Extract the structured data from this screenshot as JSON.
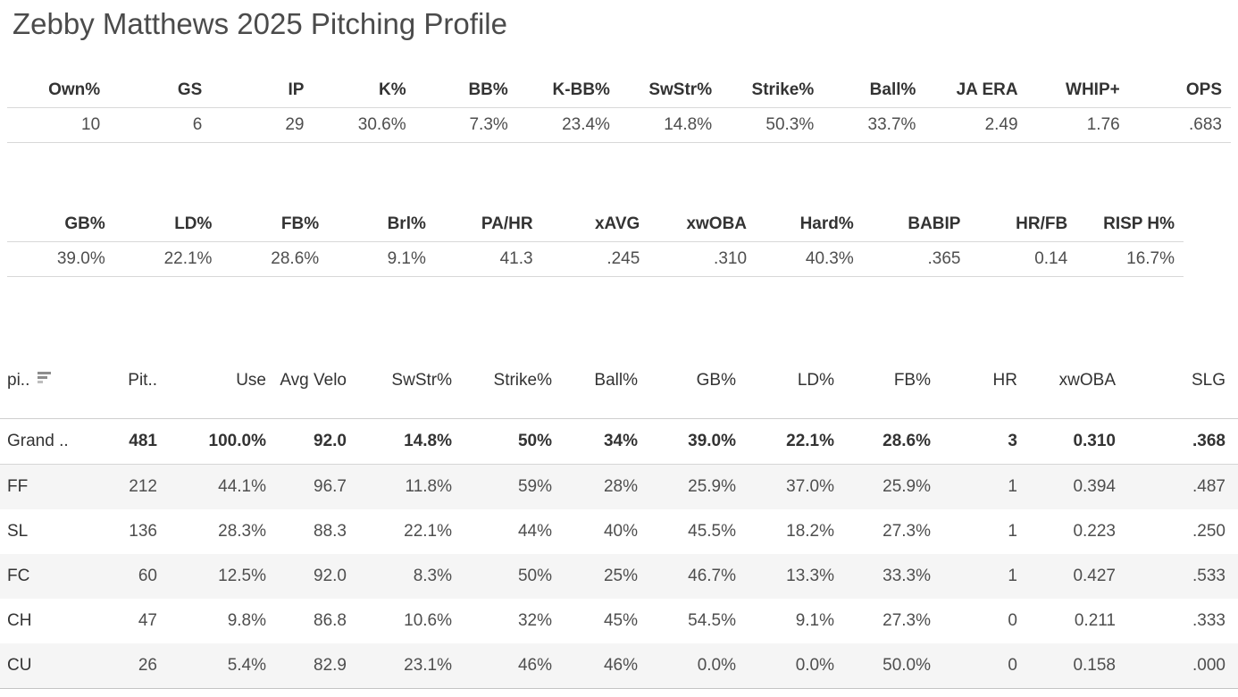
{
  "title": "Zebby Matthews 2025 Pitching Profile",
  "summary_table_1": {
    "columns": [
      "Own%",
      "GS",
      "IP",
      "K%",
      "BB%",
      "K-BB%",
      "SwStr%",
      "Strike%",
      "Ball%",
      "JA ERA",
      "WHIP+",
      "OPS"
    ],
    "values": [
      "10",
      "6",
      "29",
      "30.6%",
      "7.3%",
      "23.4%",
      "14.8%",
      "50.3%",
      "33.7%",
      "2.49",
      "1.76",
      ".683"
    ]
  },
  "summary_table_2": {
    "columns": [
      "GB%",
      "LD%",
      "FB%",
      "Brl%",
      "PA/HR",
      "xAVG",
      "xwOBA",
      "Hard%",
      "BABIP",
      "HR/FB",
      "RISP H%"
    ],
    "values": [
      "39.0%",
      "22.1%",
      "28.6%",
      "9.1%",
      "41.3",
      ".245",
      ".310",
      "40.3%",
      ".365",
      "0.14",
      "16.7%"
    ]
  },
  "pitch_table": {
    "row_header_label": "pi..",
    "sort_icon": "sort-descending-icon",
    "columns": [
      "Pit..",
      "Use",
      "Avg Velo",
      "SwStr%",
      "Strike%",
      "Ball%",
      "GB%",
      "LD%",
      "FB%",
      "HR",
      "xwOBA",
      "SLG"
    ],
    "rows": [
      {
        "label": "Grand ..",
        "grand": true,
        "values": [
          "481",
          "100.0%",
          "92.0",
          "14.8%",
          "50%",
          "34%",
          "39.0%",
          "22.1%",
          "28.6%",
          "3",
          "0.310",
          ".368"
        ]
      },
      {
        "label": "FF",
        "grand": false,
        "values": [
          "212",
          "44.1%",
          "96.7",
          "11.8%",
          "59%",
          "28%",
          "25.9%",
          "37.0%",
          "25.9%",
          "1",
          "0.394",
          ".487"
        ]
      },
      {
        "label": "SL",
        "grand": false,
        "values": [
          "136",
          "28.3%",
          "88.3",
          "22.1%",
          "44%",
          "40%",
          "45.5%",
          "18.2%",
          "27.3%",
          "1",
          "0.223",
          ".250"
        ]
      },
      {
        "label": "FC",
        "grand": false,
        "values": [
          "60",
          "12.5%",
          "92.0",
          "8.3%",
          "50%",
          "25%",
          "46.7%",
          "13.3%",
          "33.3%",
          "1",
          "0.427",
          ".533"
        ]
      },
      {
        "label": "CH",
        "grand": false,
        "values": [
          "47",
          "9.8%",
          "86.8",
          "10.6%",
          "32%",
          "45%",
          "54.5%",
          "9.1%",
          "27.3%",
          "0",
          "0.211",
          ".333"
        ]
      },
      {
        "label": "CU",
        "grand": false,
        "values": [
          "26",
          "5.4%",
          "82.9",
          "23.1%",
          "46%",
          "46%",
          "0.0%",
          "0.0%",
          "50.0%",
          "0",
          "0.158",
          ".000"
        ]
      }
    ]
  },
  "colors": {
    "title_text": "#4b4b4b",
    "header_text": "#333333",
    "value_text": "#4e4e4e",
    "grid_line_light": "#d8d8d8",
    "grid_line_dark": "#c3c3c3",
    "alt_row_background": "#f5f5f5",
    "sort_icon_gray": "#8d8d8d"
  }
}
